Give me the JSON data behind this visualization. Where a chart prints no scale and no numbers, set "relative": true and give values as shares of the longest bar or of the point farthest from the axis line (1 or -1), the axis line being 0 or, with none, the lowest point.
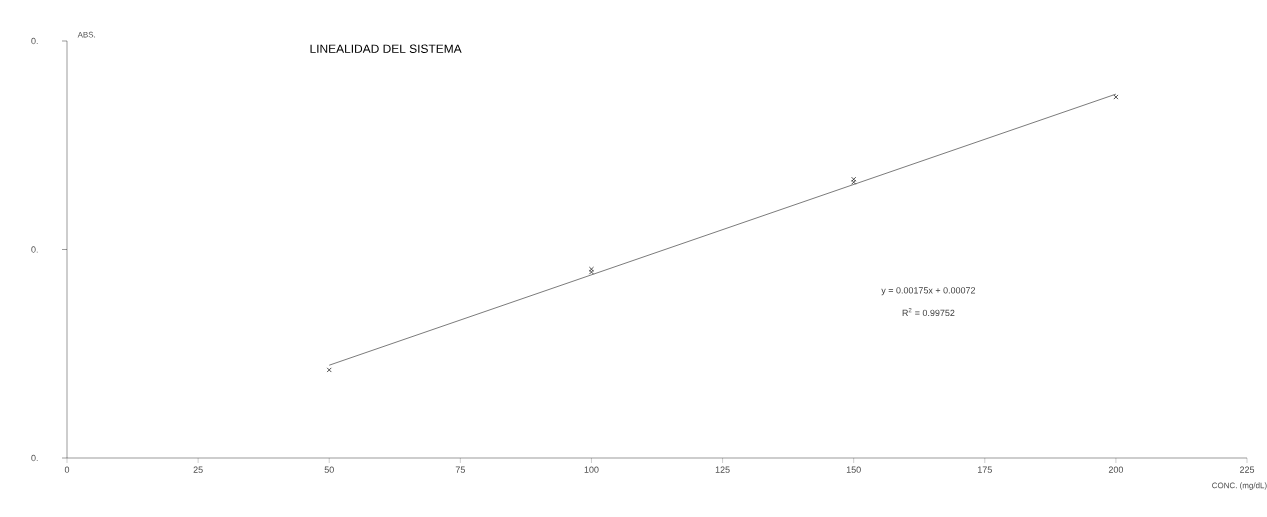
{
  "chart_data": {
    "type": "scatter",
    "title": "LINEALIDAD DEL SISTEMA",
    "xlabel": "CONC. (mg/dL)",
    "relative": true,
    "marker": "cross",
    "grid": false,
    "xlim": [
      0,
      225
    ],
    "xticks": [
      0,
      25,
      50,
      75,
      100,
      125,
      150,
      175,
      200,
      225
    ],
    "series": [
      {
        "color": "#222222",
        "x": [
          50,
          100,
          100,
          150,
          150,
          200
        ],
        "values": [
          0.242,
          0.519,
          0.511,
          0.766,
          0.758,
          0.992
        ]
      },
      {
        "type": "line",
        "color": "#222222",
        "marker": "none",
        "x": [
          50,
          200
        ],
        "values": [
          0.255,
          1
        ]
      }
    ],
    "annotations": [
      "0.",
      "0.",
      "0.",
      "ABS.",
      "y = 0.00175x + 0.00072",
      "R$^{2}$ = 0.99752"
    ]
  }
}
